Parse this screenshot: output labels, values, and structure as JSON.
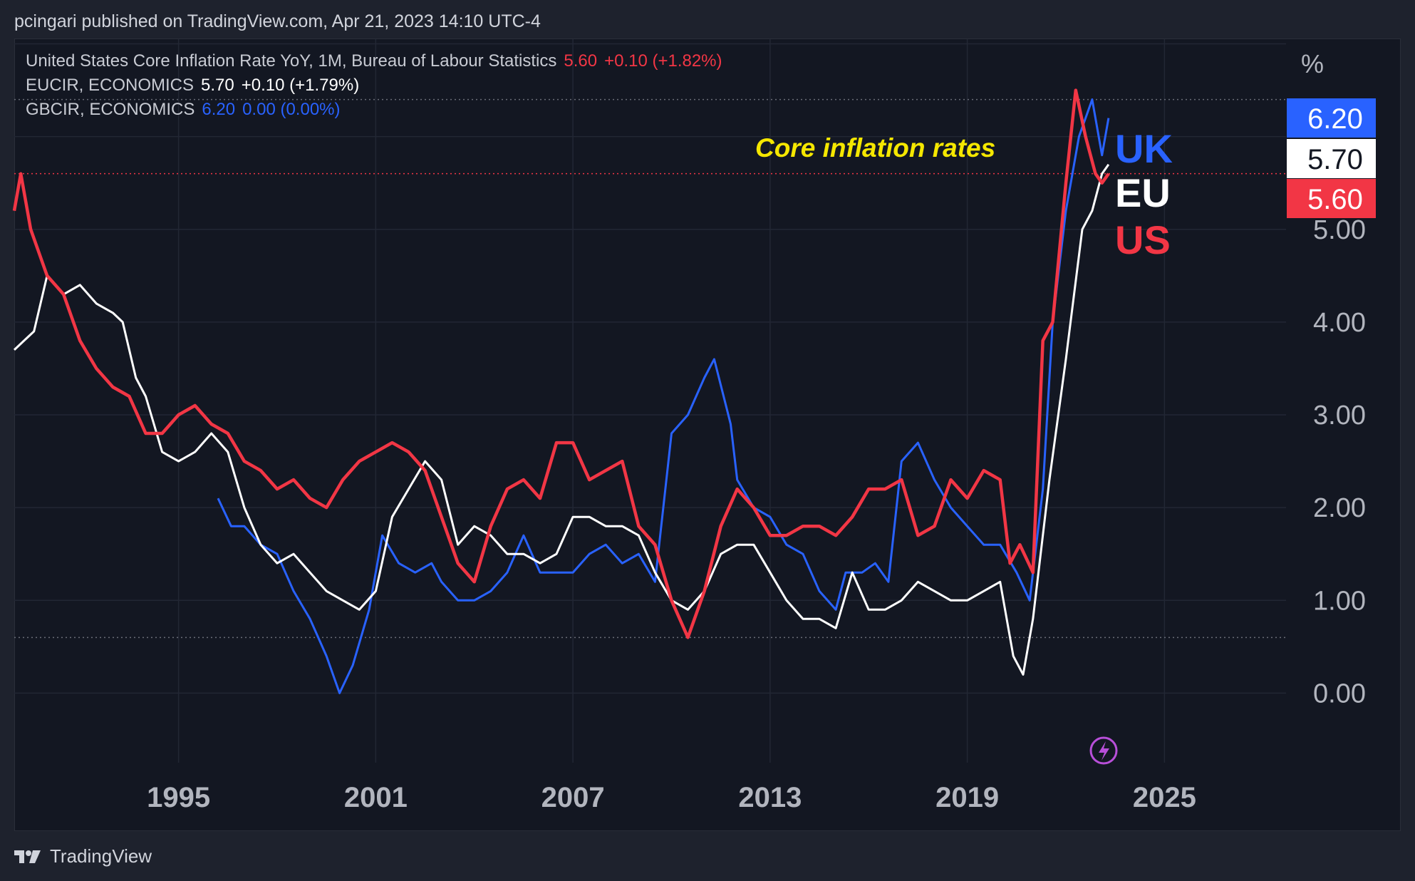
{
  "header": {
    "published": "pcingari published on TradingView.com, Apr 21, 2023 14:10 UTC-4"
  },
  "legend": [
    {
      "name": "United States Core Inflation Rate YoY, 1M, Bureau of Labour Statistics",
      "value": "5.60",
      "change": "+0.10 (+1.82%)",
      "color": "#f23645"
    },
    {
      "name": "EUCIR, ECONOMICS",
      "value": "5.70",
      "change": "+0.10 (+1.79%)",
      "color": "#ffffff"
    },
    {
      "name": "GBCIR, ECONOMICS",
      "value": "6.20",
      "change": "0.00 (0.00%)",
      "color": "#2962ff"
    }
  ],
  "footer": {
    "brand": "TradingView",
    "logo_icon": "tradingview-logo-icon"
  },
  "chart_data": {
    "type": "line",
    "annotation": "Core inflation rates",
    "ylabel": "%",
    "xlim": [
      1990.0,
      2028.7
    ],
    "ylim": [
      -0.75,
      7.05
    ],
    "y_ticks": [
      "0.00",
      "1.00",
      "2.00",
      "3.00",
      "4.00",
      "5.00"
    ],
    "x_ticks": [
      "1995",
      "2001",
      "2007",
      "2013",
      "2019",
      "2025"
    ],
    "price_labels": [
      {
        "series": "UK",
        "value": "6.20",
        "bg": "#2962ff",
        "fg": "#ffffff"
      },
      {
        "series": "EU",
        "value": "5.70",
        "bg": "#ffffff",
        "fg": "#131722"
      },
      {
        "series": "US",
        "value": "5.60",
        "bg": "#f23645",
        "fg": "#ffffff"
      }
    ],
    "series": [
      {
        "name": "UK",
        "color": "#2962ff",
        "x": [
          1996.2,
          1996.6,
          1997.0,
          1997.5,
          1998.0,
          1998.5,
          1999.0,
          1999.5,
          1999.9,
          2000.3,
          2000.8,
          2001.2,
          2001.7,
          2002.2,
          2002.7,
          2003.0,
          2003.5,
          2004.0,
          2004.5,
          2005.0,
          2005.5,
          2006.0,
          2006.5,
          2007.0,
          2007.5,
          2008.0,
          2008.5,
          2009.0,
          2009.5,
          2010.0,
          2010.5,
          2011.0,
          2011.3,
          2011.8,
          2012.0,
          2012.5,
          2013.0,
          2013.5,
          2014.0,
          2014.5,
          2015.0,
          2015.3,
          2015.8,
          2016.2,
          2016.6,
          2017.0,
          2017.5,
          2018.0,
          2018.5,
          2019.0,
          2019.5,
          2020.0,
          2020.5,
          2020.9,
          2021.3,
          2021.6,
          2022.0,
          2022.4,
          2022.8,
          2023.1,
          2023.3
        ],
        "y": [
          2.1,
          1.8,
          1.8,
          1.6,
          1.5,
          1.1,
          0.8,
          0.4,
          0.0,
          0.3,
          0.9,
          1.7,
          1.4,
          1.3,
          1.4,
          1.2,
          1.0,
          1.0,
          1.1,
          1.3,
          1.7,
          1.3,
          1.3,
          1.3,
          1.5,
          1.6,
          1.4,
          1.5,
          1.2,
          2.8,
          3.0,
          3.4,
          3.6,
          2.9,
          2.3,
          2.0,
          1.9,
          1.6,
          1.5,
          1.1,
          0.9,
          1.3,
          1.3,
          1.4,
          1.2,
          2.5,
          2.7,
          2.3,
          2.0,
          1.8,
          1.6,
          1.6,
          1.3,
          1.0,
          2.2,
          4.0,
          5.2,
          6.0,
          6.4,
          5.8,
          6.2
        ]
      },
      {
        "name": "EU",
        "color": "#ffffff",
        "x": [
          1990.0,
          1990.3,
          1990.6,
          1991.0,
          1991.5,
          1992.0,
          1992.5,
          1993.0,
          1993.3,
          1993.7,
          1994.0,
          1994.5,
          1995.0,
          1995.5,
          1996.0,
          1996.5,
          1997.0,
          1997.5,
          1998.0,
          1998.5,
          1999.0,
          1999.5,
          2000.0,
          2000.5,
          2001.0,
          2001.5,
          2002.0,
          2002.5,
          2003.0,
          2003.5,
          2004.0,
          2004.5,
          2005.0,
          2005.5,
          2006.0,
          2006.5,
          2007.0,
          2007.5,
          2008.0,
          2008.5,
          2009.0,
          2009.5,
          2010.0,
          2010.5,
          2011.0,
          2011.5,
          2012.0,
          2012.5,
          2013.0,
          2013.5,
          2014.0,
          2014.5,
          2015.0,
          2015.5,
          2016.0,
          2016.5,
          2017.0,
          2017.5,
          2018.0,
          2018.5,
          2019.0,
          2019.5,
          2020.0,
          2020.4,
          2020.7,
          2021.0,
          2021.5,
          2022.0,
          2022.5,
          2022.8,
          2023.1,
          2023.3
        ],
        "y": [
          3.7,
          3.8,
          3.9,
          4.5,
          4.3,
          4.4,
          4.2,
          4.1,
          4.0,
          3.4,
          3.2,
          2.6,
          2.5,
          2.6,
          2.8,
          2.6,
          2.0,
          1.6,
          1.4,
          1.5,
          1.3,
          1.1,
          1.0,
          0.9,
          1.1,
          1.9,
          2.2,
          2.5,
          2.3,
          1.6,
          1.8,
          1.7,
          1.5,
          1.5,
          1.4,
          1.5,
          1.9,
          1.9,
          1.8,
          1.8,
          1.7,
          1.3,
          1.0,
          0.9,
          1.1,
          1.5,
          1.6,
          1.6,
          1.3,
          1.0,
          0.8,
          0.8,
          0.7,
          1.3,
          0.9,
          0.9,
          1.0,
          1.2,
          1.1,
          1.0,
          1.0,
          1.1,
          1.2,
          0.4,
          0.2,
          0.8,
          2.3,
          3.6,
          5.0,
          5.2,
          5.6,
          5.7
        ]
      },
      {
        "name": "US",
        "color": "#f23645",
        "x": [
          1990.0,
          1990.2,
          1990.5,
          1991.0,
          1991.5,
          1992.0,
          1992.5,
          1993.0,
          1993.5,
          1994.0,
          1994.5,
          1995.0,
          1995.5,
          1996.0,
          1996.5,
          1997.0,
          1997.5,
          1998.0,
          1998.5,
          1999.0,
          1999.5,
          2000.0,
          2000.5,
          2001.0,
          2001.5,
          2002.0,
          2002.5,
          2003.0,
          2003.5,
          2004.0,
          2004.5,
          2005.0,
          2005.5,
          2006.0,
          2006.5,
          2007.0,
          2007.5,
          2008.0,
          2008.5,
          2009.0,
          2009.5,
          2010.0,
          2010.5,
          2011.0,
          2011.5,
          2012.0,
          2012.5,
          2013.0,
          2013.5,
          2014.0,
          2014.5,
          2015.0,
          2015.5,
          2016.0,
          2016.5,
          2017.0,
          2017.5,
          2018.0,
          2018.5,
          2019.0,
          2019.5,
          2020.0,
          2020.3,
          2020.6,
          2021.0,
          2021.3,
          2021.6,
          2022.0,
          2022.3,
          2022.6,
          2022.9,
          2023.1,
          2023.3
        ],
        "y": [
          5.2,
          5.6,
          5.0,
          4.5,
          4.3,
          3.8,
          3.5,
          3.3,
          3.2,
          2.8,
          2.8,
          3.0,
          3.1,
          2.9,
          2.8,
          2.5,
          2.4,
          2.2,
          2.3,
          2.1,
          2.0,
          2.3,
          2.5,
          2.6,
          2.7,
          2.6,
          2.4,
          1.9,
          1.4,
          1.2,
          1.8,
          2.2,
          2.3,
          2.1,
          2.7,
          2.7,
          2.3,
          2.4,
          2.5,
          1.8,
          1.6,
          1.0,
          0.6,
          1.1,
          1.8,
          2.2,
          2.0,
          1.7,
          1.7,
          1.8,
          1.8,
          1.7,
          1.9,
          2.2,
          2.2,
          2.3,
          1.7,
          1.8,
          2.3,
          2.1,
          2.4,
          2.3,
          1.4,
          1.6,
          1.3,
          3.8,
          4.0,
          5.5,
          6.5,
          6.0,
          5.6,
          5.5,
          5.6
        ]
      }
    ],
    "series_labels": [
      {
        "text": "UK",
        "color": "#2962ff"
      },
      {
        "text": "EU",
        "color": "#ffffff"
      },
      {
        "text": "US",
        "color": "#f23645"
      }
    ],
    "grid": true,
    "legend_position": "top-left"
  }
}
